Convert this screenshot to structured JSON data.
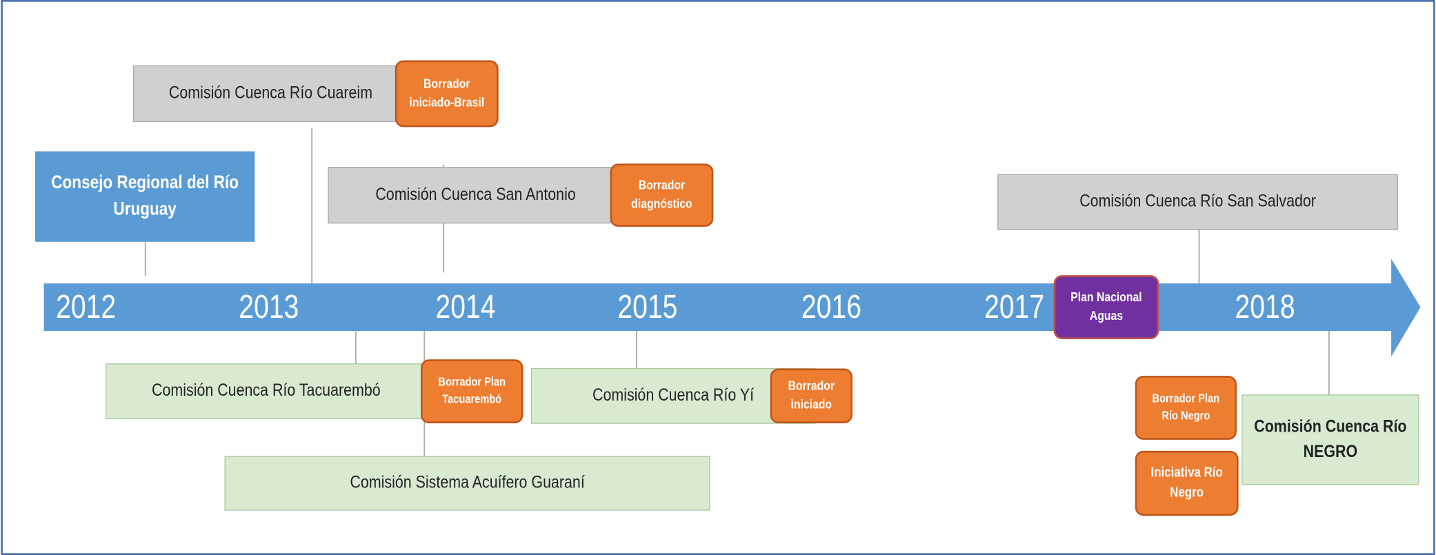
{
  "years": [
    "2012",
    "2013",
    "2014",
    "2015",
    "2016",
    "2017",
    "2018"
  ],
  "boxes": [
    {
      "lines": [
        "Comisión Cuenca Río Cuareim"
      ]
    },
    {
      "lines": [
        "Borrador",
        "iniciado-Brasil"
      ]
    },
    {
      "lines": [
        "Consejo Regional del Río",
        "Uruguay"
      ]
    },
    {
      "lines": [
        "Comisión Cuenca San Antonio"
      ]
    },
    {
      "lines": [
        "Borrador",
        "diagnóstico"
      ]
    },
    {
      "lines": [
        "Comisión Cuenca Río San Salvador"
      ]
    },
    {
      "lines": [
        "Plan Nacional",
        "Aguas"
      ]
    },
    {
      "lines": [
        "Comisión Cuenca Río Tacuarembó"
      ]
    },
    {
      "lines": [
        "Borrador Plan",
        "Tacuarembó"
      ]
    },
    {
      "lines": [
        "Comisión Cuenca Río Yí"
      ]
    },
    {
      "lines": [
        "Borrador",
        "iniciado"
      ]
    },
    {
      "lines": [
        "Comisión Sistema Acuífero Guaraní"
      ]
    },
    {
      "lines": [
        "Borrador Plan",
        "Río Negro"
      ]
    },
    {
      "lines": [
        "Iniciativa Río",
        "Negro"
      ]
    },
    {
      "lines": [
        "Comisión Cuenca Río",
        "NEGRO"
      ]
    }
  ]
}
